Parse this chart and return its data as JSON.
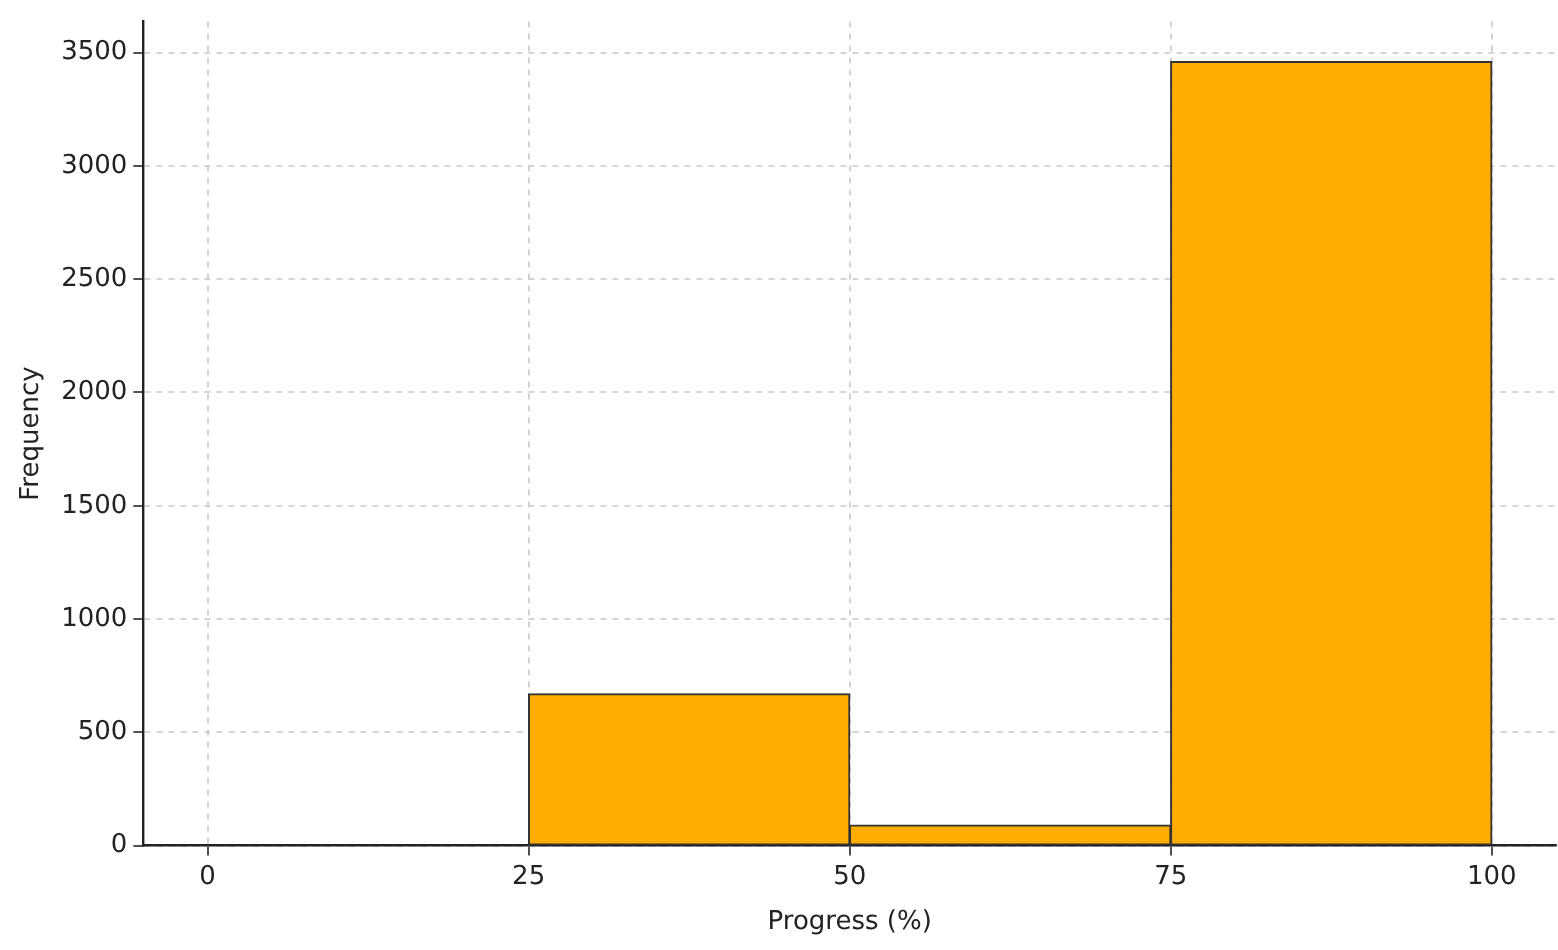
{
  "chart_data": {
    "type": "histogram",
    "xlabel": "Progress (%)",
    "ylabel": "Frequency",
    "bins": [
      0,
      25,
      50,
      75,
      100
    ],
    "values": [
      0,
      670,
      90,
      3460
    ],
    "color": "#ffad00",
    "xlim": [
      -5,
      105
    ],
    "xticks": [
      0,
      25,
      50,
      75,
      100
    ],
    "ylim": [
      0,
      3637
    ],
    "yticks": [
      0,
      500,
      1000,
      1500,
      2000,
      2500,
      3000,
      3500
    ],
    "grid": true
  }
}
